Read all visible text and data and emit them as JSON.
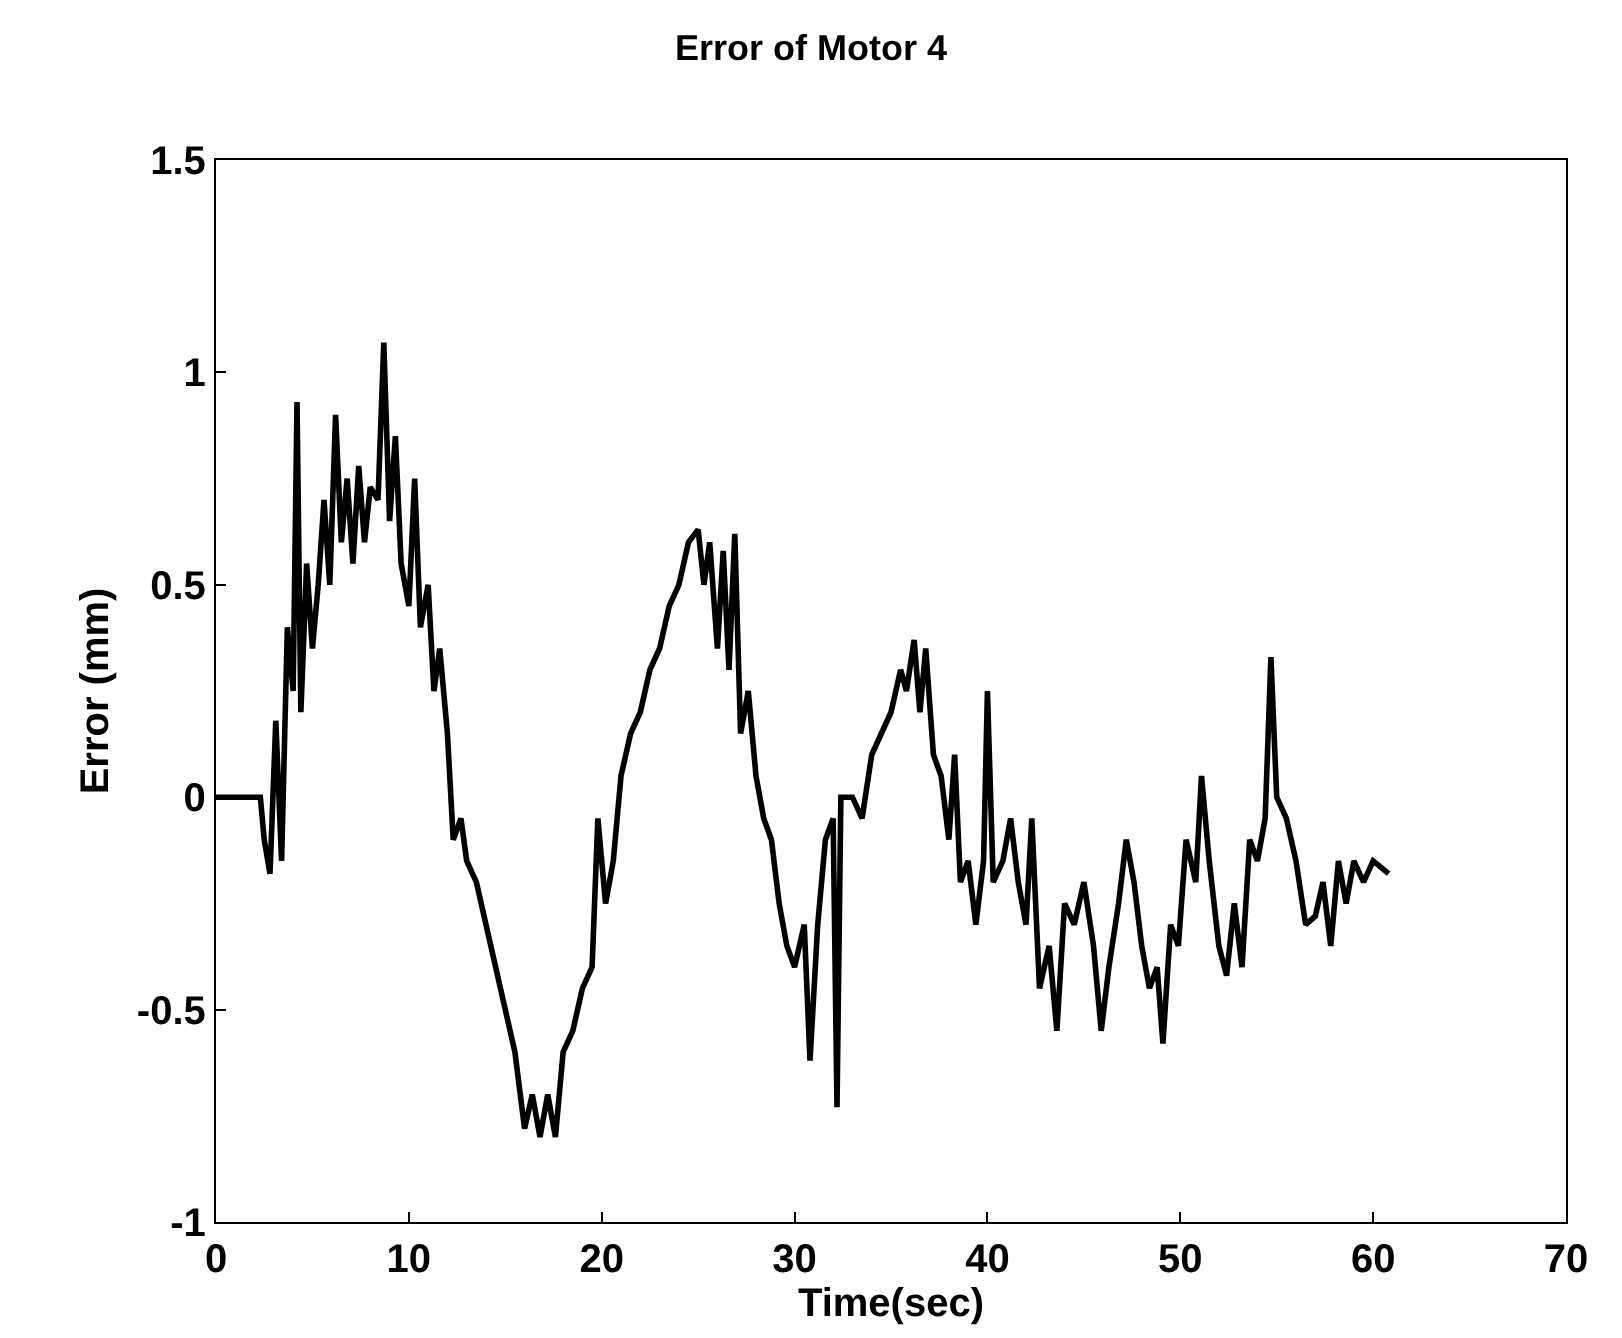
{
  "chart_data": {
    "type": "line",
    "title": "Error of Motor 4",
    "xlabel": "Time(sec)",
    "ylabel": "Error (mm)",
    "xlim": [
      0,
      70
    ],
    "xticks": [
      0,
      10,
      20,
      30,
      40,
      50,
      60,
      70
    ],
    "ylim": [
      -1,
      1.5
    ],
    "yticks": [
      -1,
      -0.5,
      0,
      0.5,
      1,
      1.5
    ],
    "grid": false,
    "marker": "none",
    "line_style": "solid",
    "series": [
      {
        "color": "#000000",
        "x": [
          0,
          2.3,
          2.5,
          2.8,
          3.1,
          3.4,
          3.7,
          4.0,
          4.2,
          4.4,
          4.7,
          5.0,
          5.3,
          5.6,
          5.9,
          6.2,
          6.5,
          6.8,
          7.1,
          7.4,
          7.7,
          8.0,
          8.4,
          8.7,
          9.0,
          9.3,
          9.6,
          10.0,
          10.3,
          10.6,
          11.0,
          11.3,
          11.6,
          12.0,
          12.3,
          12.7,
          13.0,
          13.5,
          14.0,
          14.5,
          15.0,
          15.5,
          16.0,
          16.4,
          16.8,
          17.2,
          17.6,
          18.0,
          18.5,
          19.0,
          19.5,
          19.8,
          20.2,
          20.6,
          21.0,
          21.5,
          22.0,
          22.5,
          23.0,
          23.5,
          24.0,
          24.5,
          25.0,
          25.3,
          25.6,
          26.0,
          26.3,
          26.6,
          26.9,
          27.2,
          27.6,
          28.0,
          28.4,
          28.8,
          29.2,
          29.6,
          30.0,
          30.5,
          30.8,
          31.2,
          31.6,
          32.0,
          32.2,
          32.4,
          33.0,
          33.5,
          34.0,
          34.5,
          35.0,
          35.5,
          35.8,
          36.2,
          36.5,
          36.8,
          37.2,
          37.6,
          38.0,
          38.3,
          38.6,
          39.0,
          39.4,
          39.8,
          40.0,
          40.3,
          40.8,
          41.2,
          41.6,
          42.0,
          42.3,
          42.7,
          43.2,
          43.6,
          44.0,
          44.5,
          45.0,
          45.5,
          45.9,
          46.3,
          46.8,
          47.2,
          47.6,
          48.0,
          48.4,
          48.8,
          49.1,
          49.5,
          49.9,
          50.3,
          50.8,
          51.1,
          51.5,
          52.0,
          52.4,
          52.8,
          53.2,
          53.6,
          54.0,
          54.4,
          54.7,
          55.0,
          55.5,
          56.0,
          56.5,
          57.0,
          57.4,
          57.8,
          58.2,
          58.6,
          59.0,
          59.5,
          60.0,
          60.8
        ],
        "values": [
          0,
          0,
          -0.1,
          -0.18,
          0.18,
          -0.15,
          0.4,
          0.25,
          0.93,
          0.2,
          0.55,
          0.35,
          0.5,
          0.7,
          0.5,
          0.9,
          0.6,
          0.75,
          0.55,
          0.78,
          0.6,
          0.73,
          0.7,
          1.07,
          0.65,
          0.85,
          0.55,
          0.45,
          0.75,
          0.4,
          0.5,
          0.25,
          0.35,
          0.15,
          -0.1,
          -0.05,
          -0.15,
          -0.2,
          -0.3,
          -0.4,
          -0.5,
          -0.6,
          -0.78,
          -0.7,
          -0.8,
          -0.7,
          -0.8,
          -0.6,
          -0.55,
          -0.45,
          -0.4,
          -0.05,
          -0.25,
          -0.15,
          0.05,
          0.15,
          0.2,
          0.3,
          0.35,
          0.45,
          0.5,
          0.6,
          0.63,
          0.5,
          0.6,
          0.35,
          0.58,
          0.3,
          0.62,
          0.15,
          0.25,
          0.05,
          -0.05,
          -0.1,
          -0.25,
          -0.35,
          -0.4,
          -0.3,
          -0.62,
          -0.3,
          -0.1,
          -0.05,
          -0.73,
          0.0,
          0.0,
          -0.05,
          0.1,
          0.15,
          0.2,
          0.3,
          0.25,
          0.37,
          0.2,
          0.35,
          0.1,
          0.05,
          -0.1,
          0.1,
          -0.2,
          -0.15,
          -0.3,
          -0.15,
          0.25,
          -0.2,
          -0.15,
          -0.05,
          -0.2,
          -0.3,
          -0.05,
          -0.45,
          -0.35,
          -0.55,
          -0.25,
          -0.3,
          -0.2,
          -0.35,
          -0.55,
          -0.4,
          -0.25,
          -0.1,
          -0.2,
          -0.35,
          -0.45,
          -0.4,
          -0.58,
          -0.3,
          -0.35,
          -0.1,
          -0.2,
          0.05,
          -0.15,
          -0.35,
          -0.42,
          -0.25,
          -0.4,
          -0.1,
          -0.15,
          -0.05,
          0.33,
          0.0,
          -0.05,
          -0.15,
          -0.3,
          -0.28,
          -0.2,
          -0.35,
          -0.15,
          -0.25,
          -0.15,
          -0.2,
          -0.15,
          -0.18
        ]
      }
    ]
  }
}
